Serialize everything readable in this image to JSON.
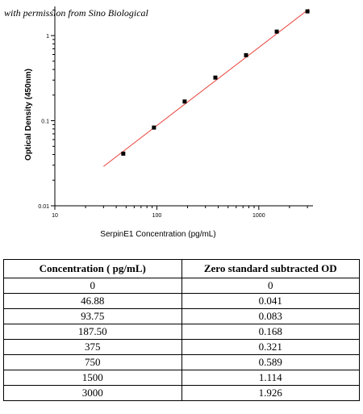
{
  "credit": "with permission from Sino Biological",
  "chart_data": {
    "type": "scatter",
    "title": "",
    "xlabel": "SerpinE1 Concentration (pg/mL)",
    "ylabel": "Optical Density (450nm)",
    "x_scale": "log",
    "y_scale": "log",
    "xlim": [
      10,
      3400
    ],
    "ylim": [
      0.01,
      2.2
    ],
    "x_ticks": [
      10,
      100,
      1000
    ],
    "x_tick_labels": [
      "10",
      "100",
      "1000"
    ],
    "y_ticks": [
      0.01,
      0.1,
      1
    ],
    "y_tick_labels": [
      "0.01",
      "0.1",
      "1"
    ],
    "grid": false,
    "series": [
      {
        "points": [
          {
            "x": 46.88,
            "y": 0.041
          },
          {
            "x": 93.75,
            "y": 0.083
          },
          {
            "x": 187.5,
            "y": 0.168
          },
          {
            "x": 375,
            "y": 0.321
          },
          {
            "x": 750,
            "y": 0.589
          },
          {
            "x": 1500,
            "y": 1.114
          },
          {
            "x": 3000,
            "y": 1.926
          }
        ],
        "color": "#000000"
      }
    ],
    "fit_line": {
      "color": "#e8413a",
      "x": [
        30,
        3100
      ],
      "y": [
        0.029,
        2.05
      ]
    }
  },
  "table": {
    "headers": [
      "Concentration ( pg/mL)",
      "Zero standard subtracted OD"
    ],
    "rows": [
      [
        "0",
        "0"
      ],
      [
        "46.88",
        "0.041"
      ],
      [
        "93.75",
        "0.083"
      ],
      [
        "187.50",
        "0.168"
      ],
      [
        "375",
        "0.321"
      ],
      [
        "750",
        "0.589"
      ],
      [
        "1500",
        "1.114"
      ],
      [
        "3000",
        "1.926"
      ]
    ]
  }
}
